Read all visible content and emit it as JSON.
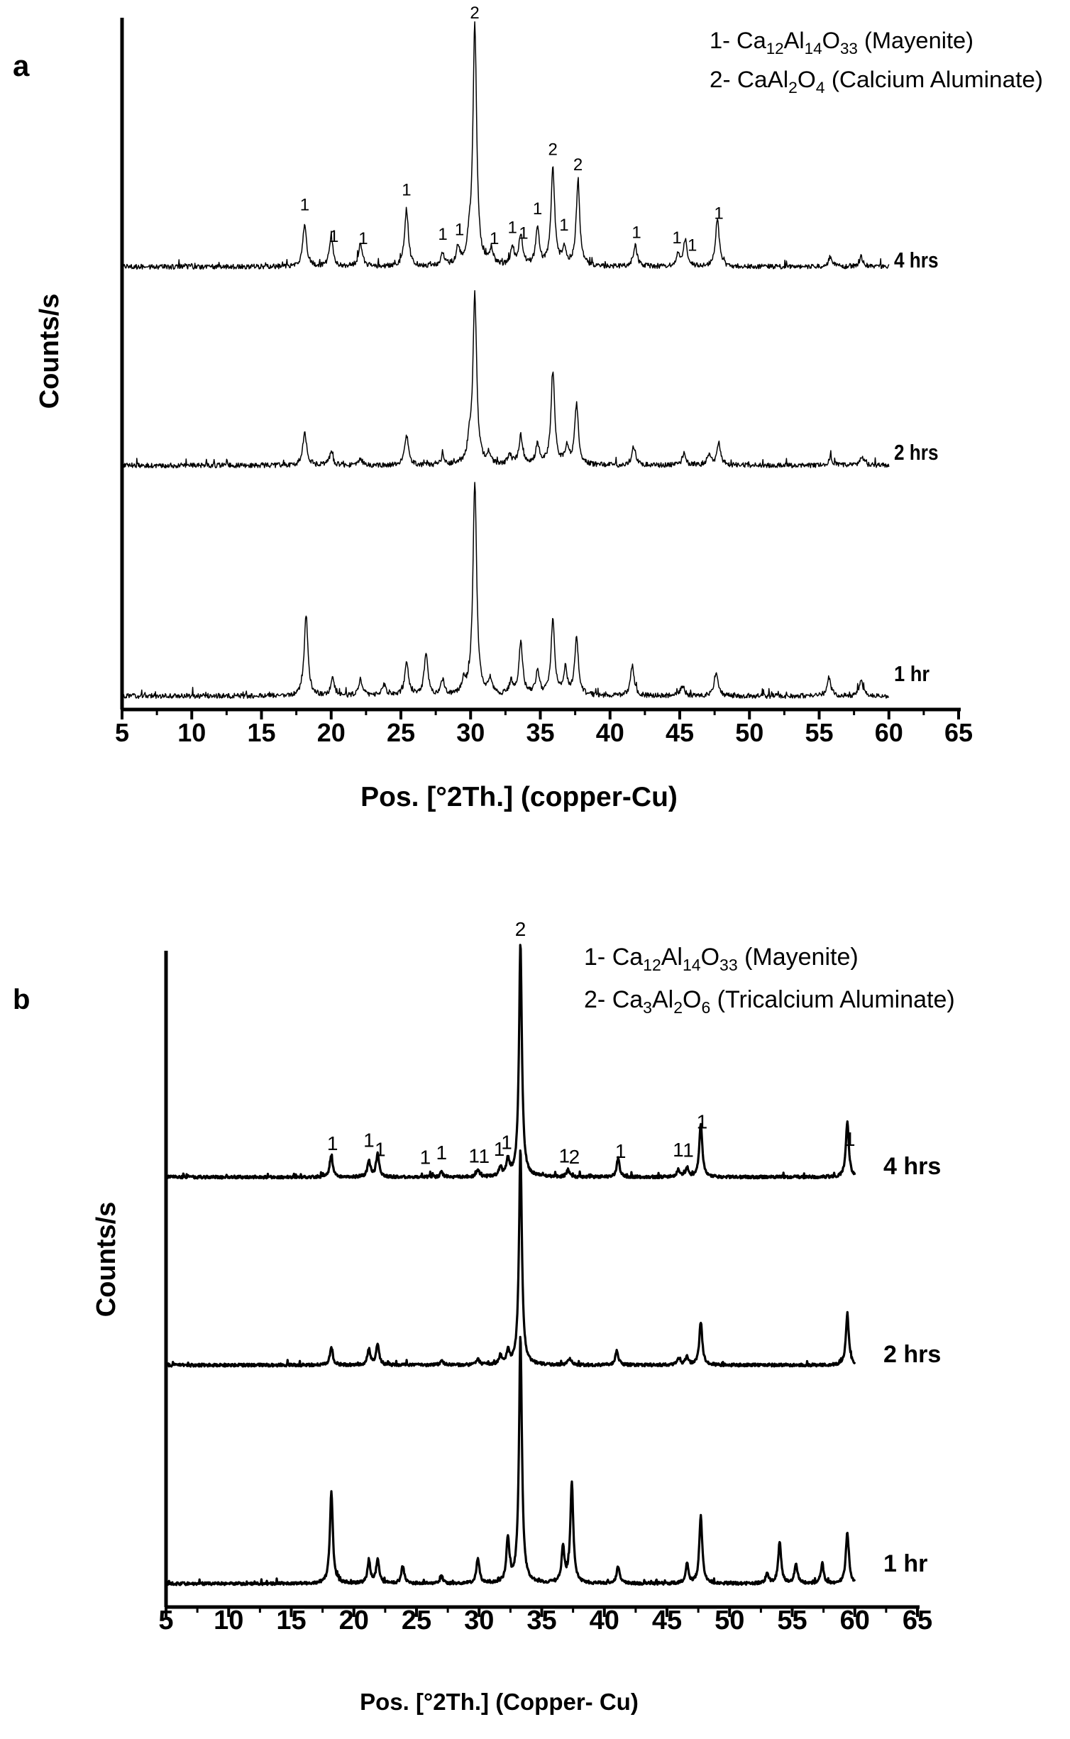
{
  "chart_data": [
    {
      "panel_label": "a",
      "type": "line",
      "xlabel": "Pos. [°2Th.] (copper-Cu)",
      "ylabel": "Counts/s",
      "xlim": [
        5,
        65
      ],
      "xticks": [
        5,
        10,
        15,
        20,
        25,
        30,
        35,
        40,
        45,
        50,
        55,
        60,
        65
      ],
      "y_ticks_shown": false,
      "legend": {
        "placement": "top-right",
        "entries": [
          {
            "number": "1",
            "prefix": "1- ",
            "formula": [
              [
                "Ca",
                ""
              ],
              [
                "12",
                "sub"
              ],
              [
                "Al",
                ""
              ],
              [
                "14",
                "sub"
              ],
              [
                "O",
                ""
              ],
              [
                "33",
                "sub"
              ]
            ],
            "name": "(Mayenite)"
          },
          {
            "number": "2",
            "prefix": "2- ",
            "formula": [
              [
                "CaAl",
                ""
              ],
              [
                "2",
                "sub"
              ],
              [
                "O",
                ""
              ],
              [
                "4",
                "sub"
              ]
            ],
            "name": "(Calcium Aluminate)"
          }
        ]
      },
      "x_range_measured": [
        5,
        60
      ],
      "series": [
        {
          "name": "4 hrs",
          "peaks": [
            {
              "x": 18.1,
              "h": 0.18
            },
            {
              "x": 20.0,
              "h": 0.12
            },
            {
              "x": 22.1,
              "h": 0.1
            },
            {
              "x": 25.4,
              "h": 0.24
            },
            {
              "x": 28.0,
              "h": 0.05
            },
            {
              "x": 29.1,
              "h": 0.07
            },
            {
              "x": 29.9,
              "h": 0.08
            },
            {
              "x": 30.3,
              "h": 1.0
            },
            {
              "x": 31.5,
              "h": 0.06
            },
            {
              "x": 33.0,
              "h": 0.07
            },
            {
              "x": 33.6,
              "h": 0.13
            },
            {
              "x": 34.8,
              "h": 0.15
            },
            {
              "x": 35.9,
              "h": 0.4
            },
            {
              "x": 36.7,
              "h": 0.07
            },
            {
              "x": 37.7,
              "h": 0.34
            },
            {
              "x": 41.8,
              "h": 0.09
            },
            {
              "x": 44.9,
              "h": 0.05
            },
            {
              "x": 45.4,
              "h": 0.11
            },
            {
              "x": 47.7,
              "h": 0.2
            },
            {
              "x": 55.8,
              "h": 0.04
            },
            {
              "x": 58.0,
              "h": 0.04
            }
          ],
          "peak_labels": [
            {
              "x": 18.1,
              "text": "1"
            },
            {
              "x": 20.2,
              "text": "1"
            },
            {
              "x": 22.3,
              "text": "1"
            },
            {
              "x": 25.4,
              "text": "1"
            },
            {
              "x": 28.0,
              "text": "1"
            },
            {
              "x": 29.2,
              "text": "1"
            },
            {
              "x": 30.3,
              "text": "2"
            },
            {
              "x": 31.7,
              "text": "1"
            },
            {
              "x": 33.0,
              "text": "1"
            },
            {
              "x": 33.8,
              "text": "1"
            },
            {
              "x": 34.8,
              "text": "1"
            },
            {
              "x": 35.9,
              "text": "2"
            },
            {
              "x": 36.7,
              "text": "1"
            },
            {
              "x": 37.7,
              "text": "2"
            },
            {
              "x": 41.9,
              "text": "1"
            },
            {
              "x": 44.8,
              "text": "1"
            },
            {
              "x": 45.9,
              "text": "1"
            },
            {
              "x": 47.8,
              "text": "1"
            }
          ]
        },
        {
          "name": "2 hrs",
          "peaks": [
            {
              "x": 18.1,
              "h": 0.2
            },
            {
              "x": 20.0,
              "h": 0.07
            },
            {
              "x": 22.1,
              "h": 0.04
            },
            {
              "x": 25.4,
              "h": 0.18
            },
            {
              "x": 28.0,
              "h": 0.05
            },
            {
              "x": 29.9,
              "h": 0.1
            },
            {
              "x": 30.3,
              "h": 1.0
            },
            {
              "x": 31.3,
              "h": 0.06
            },
            {
              "x": 32.8,
              "h": 0.06
            },
            {
              "x": 33.6,
              "h": 0.17
            },
            {
              "x": 34.8,
              "h": 0.12
            },
            {
              "x": 35.9,
              "h": 0.55
            },
            {
              "x": 36.9,
              "h": 0.1
            },
            {
              "x": 37.6,
              "h": 0.35
            },
            {
              "x": 41.7,
              "h": 0.11
            },
            {
              "x": 45.3,
              "h": 0.07
            },
            {
              "x": 47.1,
              "h": 0.06
            },
            {
              "x": 47.8,
              "h": 0.13
            },
            {
              "x": 55.8,
              "h": 0.05
            },
            {
              "x": 58.1,
              "h": 0.05
            }
          ]
        },
        {
          "name": "1 hr",
          "peaks": [
            {
              "x": 18.2,
              "h": 0.38
            },
            {
              "x": 20.1,
              "h": 0.08
            },
            {
              "x": 22.1,
              "h": 0.08
            },
            {
              "x": 23.8,
              "h": 0.05
            },
            {
              "x": 25.4,
              "h": 0.15
            },
            {
              "x": 26.8,
              "h": 0.19
            },
            {
              "x": 28.0,
              "h": 0.07
            },
            {
              "x": 29.5,
              "h": 0.06
            },
            {
              "x": 30.3,
              "h": 1.0
            },
            {
              "x": 31.4,
              "h": 0.07
            },
            {
              "x": 32.9,
              "h": 0.06
            },
            {
              "x": 33.6,
              "h": 0.25
            },
            {
              "x": 34.8,
              "h": 0.11
            },
            {
              "x": 35.9,
              "h": 0.35
            },
            {
              "x": 36.8,
              "h": 0.12
            },
            {
              "x": 37.6,
              "h": 0.27
            },
            {
              "x": 41.6,
              "h": 0.14
            },
            {
              "x": 45.2,
              "h": 0.05
            },
            {
              "x": 47.6,
              "h": 0.11
            },
            {
              "x": 55.7,
              "h": 0.09
            },
            {
              "x": 58.0,
              "h": 0.07
            }
          ]
        }
      ]
    },
    {
      "panel_label": "b",
      "type": "line",
      "xlabel": "Pos. [°2Th.] (Copper- Cu)",
      "ylabel": "Counts/s",
      "xlim": [
        5,
        65
      ],
      "xticks": [
        5,
        10,
        15,
        20,
        25,
        30,
        35,
        40,
        45,
        50,
        55,
        60,
        65
      ],
      "y_ticks_shown": false,
      "legend": {
        "placement": "top-right",
        "entries": [
          {
            "number": "1",
            "prefix": "1- ",
            "formula": [
              [
                "Ca",
                ""
              ],
              [
                "12",
                "sub"
              ],
              [
                "Al",
                ""
              ],
              [
                "14",
                "sub"
              ],
              [
                "O",
                ""
              ],
              [
                "33",
                "sub"
              ]
            ],
            "name": "(Mayenite)"
          },
          {
            "number": "2",
            "prefix": "2- ",
            "formula": [
              [
                "Ca",
                ""
              ],
              [
                "3",
                "sub"
              ],
              [
                "Al",
                ""
              ],
              [
                "2",
                "sub"
              ],
              [
                "O",
                ""
              ],
              [
                "6",
                "sub"
              ]
            ],
            "name": "(Tricalcium Aluminate)"
          }
        ]
      },
      "x_range_measured": [
        5,
        60
      ],
      "series": [
        {
          "name": "4 hrs",
          "peaks": [
            {
              "x": 18.2,
              "h": 0.09
            },
            {
              "x": 21.2,
              "h": 0.07
            },
            {
              "x": 21.9,
              "h": 0.1
            },
            {
              "x": 27.0,
              "h": 0.02
            },
            {
              "x": 29.9,
              "h": 0.03
            },
            {
              "x": 31.7,
              "h": 0.04
            },
            {
              "x": 32.3,
              "h": 0.07
            },
            {
              "x": 33.3,
              "h": 1.0
            },
            {
              "x": 37.1,
              "h": 0.03
            },
            {
              "x": 41.1,
              "h": 0.08
            },
            {
              "x": 45.9,
              "h": 0.03
            },
            {
              "x": 46.6,
              "h": 0.04
            },
            {
              "x": 47.7,
              "h": 0.23
            },
            {
              "x": 59.4,
              "h": 0.24
            }
          ],
          "peak_labels": [
            {
              "x": 18.3,
              "text": "1"
            },
            {
              "x": 21.2,
              "text": "1"
            },
            {
              "x": 22.1,
              "text": "1"
            },
            {
              "x": 25.7,
              "text": "1"
            },
            {
              "x": 27.0,
              "text": "1"
            },
            {
              "x": 29.6,
              "text": "1"
            },
            {
              "x": 30.4,
              "text": "1"
            },
            {
              "x": 31.6,
              "text": "1"
            },
            {
              "x": 32.2,
              "text": "1"
            },
            {
              "x": 33.3,
              "text": "2"
            },
            {
              "x": 36.8,
              "text": "1"
            },
            {
              "x": 37.6,
              "text": "2"
            },
            {
              "x": 41.3,
              "text": "1"
            },
            {
              "x": 45.9,
              "text": "1"
            },
            {
              "x": 46.7,
              "text": "1"
            },
            {
              "x": 47.8,
              "text": "1"
            },
            {
              "x": 59.6,
              "text": "1"
            }
          ]
        },
        {
          "name": "2 hrs",
          "peaks": [
            {
              "x": 18.2,
              "h": 0.08
            },
            {
              "x": 21.2,
              "h": 0.07
            },
            {
              "x": 21.9,
              "h": 0.1
            },
            {
              "x": 27.0,
              "h": 0.02
            },
            {
              "x": 29.9,
              "h": 0.03
            },
            {
              "x": 31.7,
              "h": 0.04
            },
            {
              "x": 32.3,
              "h": 0.06
            },
            {
              "x": 33.3,
              "h": 1.0
            },
            {
              "x": 37.2,
              "h": 0.03
            },
            {
              "x": 41.0,
              "h": 0.07
            },
            {
              "x": 45.9,
              "h": 0.03
            },
            {
              "x": 46.6,
              "h": 0.04
            },
            {
              "x": 47.7,
              "h": 0.2
            },
            {
              "x": 59.4,
              "h": 0.24
            }
          ]
        },
        {
          "name": "1 hr",
          "peaks": [
            {
              "x": 18.2,
              "h": 0.37
            },
            {
              "x": 21.2,
              "h": 0.09
            },
            {
              "x": 21.9,
              "h": 0.1
            },
            {
              "x": 23.9,
              "h": 0.07
            },
            {
              "x": 27.0,
              "h": 0.03
            },
            {
              "x": 29.9,
              "h": 0.1
            },
            {
              "x": 32.3,
              "h": 0.18
            },
            {
              "x": 33.3,
              "h": 1.0
            },
            {
              "x": 36.7,
              "h": 0.14
            },
            {
              "x": 37.4,
              "h": 0.41
            },
            {
              "x": 41.1,
              "h": 0.07
            },
            {
              "x": 46.6,
              "h": 0.08
            },
            {
              "x": 47.7,
              "h": 0.27
            },
            {
              "x": 53.0,
              "h": 0.04
            },
            {
              "x": 54.0,
              "h": 0.17
            },
            {
              "x": 55.3,
              "h": 0.08
            },
            {
              "x": 57.4,
              "h": 0.08
            },
            {
              "x": 59.4,
              "h": 0.21
            }
          ]
        }
      ]
    }
  ]
}
